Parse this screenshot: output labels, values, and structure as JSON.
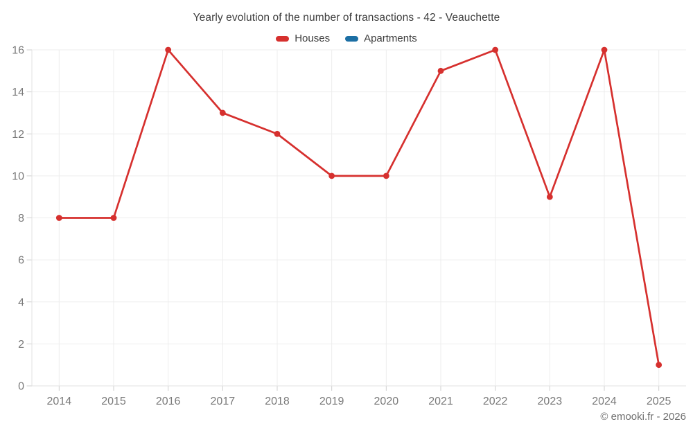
{
  "header": {
    "title": "Yearly evolution of the number of transactions - 42 - Veauchette"
  },
  "footer": {
    "watermark": "© emooki.fr - 2026"
  },
  "chart_data": {
    "type": "line",
    "title": "Yearly evolution of the number of transactions - 42 - Veauchette",
    "categories": [
      "2014",
      "2015",
      "2016",
      "2017",
      "2018",
      "2019",
      "2020",
      "2021",
      "2022",
      "2023",
      "2024",
      "2025"
    ],
    "series": [
      {
        "name": "Houses",
        "color": "#d6302e",
        "values": [
          8,
          8,
          16,
          13,
          12,
          10,
          10,
          15,
          16,
          9,
          16,
          1
        ]
      },
      {
        "name": "Apartments",
        "color": "#1c6fa4",
        "values": []
      }
    ],
    "xlabel": "",
    "ylabel": "",
    "ylim": [
      0,
      16
    ],
    "yticks": [
      0,
      2,
      4,
      6,
      8,
      10,
      12,
      14,
      16
    ],
    "grid": true,
    "legend_position": "top"
  },
  "style": {
    "grid_color": "#ededed",
    "axis_color": "#e2e2e2",
    "tick_color": "#cfcfcf",
    "axis_label_color": "#7a7a7a",
    "title_color": "#3d3d3d",
    "background": "#ffffff",
    "marker_radius": 4.4,
    "line_width": 2.7
  }
}
